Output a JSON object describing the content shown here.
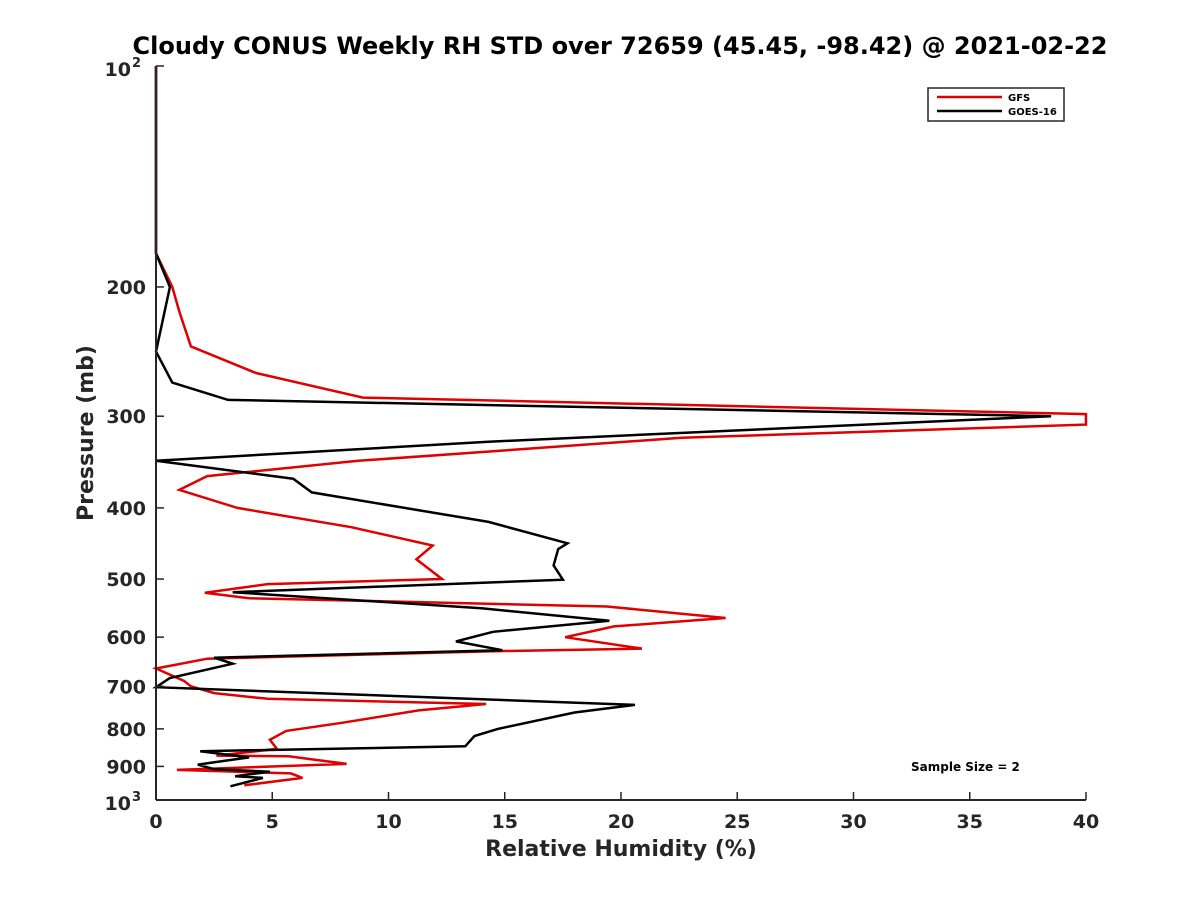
{
  "chart_data": {
    "type": "line",
    "title": "Cloudy CONUS Weekly RH STD over 72659 (45.45, -98.42) @ 2021-02-22",
    "xlabel": "Relative Humidity (%)",
    "ylabel": "Pressure (mb)",
    "xlim": [
      0,
      40
    ],
    "ylim": [
      100,
      1000
    ],
    "y_scale": "log",
    "y_reversed": true,
    "x_ticks": [
      "0",
      "5",
      "10",
      "15",
      "20",
      "25",
      "30",
      "35",
      "40"
    ],
    "y_ticks": [
      {
        "value": 100,
        "base": "10",
        "exp": "2"
      },
      {
        "value": 200,
        "label": "200"
      },
      {
        "value": 300,
        "label": "300"
      },
      {
        "value": 400,
        "label": "400"
      },
      {
        "value": 500,
        "label": "500"
      },
      {
        "value": 600,
        "label": "600"
      },
      {
        "value": 700,
        "label": "700"
      },
      {
        "value": 800,
        "label": "800"
      },
      {
        "value": 900,
        "label": "900"
      },
      {
        "value": 1000,
        "base": "10",
        "exp": "3"
      }
    ],
    "legend_position": "top-right",
    "grid": false,
    "annotation": "Sample Size = 2",
    "series": [
      {
        "name": "GFS",
        "color": "#e00000",
        "points": [
          [
            0,
            100
          ],
          [
            0,
            180
          ],
          [
            0.7,
            200
          ],
          [
            1.0,
            216
          ],
          [
            1.5,
            241
          ],
          [
            4.3,
            262
          ],
          [
            8.9,
            283
          ],
          [
            40,
            298
          ],
          [
            40,
            308
          ],
          [
            22.6,
            321
          ],
          [
            8.7,
            345
          ],
          [
            2.2,
            362
          ],
          [
            1.0,
            378
          ],
          [
            3.5,
            400
          ],
          [
            8.4,
            425
          ],
          [
            11.9,
            450
          ],
          [
            11.2,
            470
          ],
          [
            12.3,
            500
          ],
          [
            4.8,
            508
          ],
          [
            2.1,
            522
          ],
          [
            4.0,
            531
          ],
          [
            19.4,
            545
          ],
          [
            24.5,
            565
          ],
          [
            19.7,
            580
          ],
          [
            17.6,
            600
          ],
          [
            20.9,
            622
          ],
          [
            14.5,
            627
          ],
          [
            2.2,
            642
          ],
          [
            0,
            662
          ],
          [
            1.2,
            688
          ],
          [
            1.5,
            700
          ],
          [
            2.5,
            715
          ],
          [
            4.8,
            728
          ],
          [
            14.2,
            740
          ],
          [
            11.3,
            755
          ],
          [
            8.0,
            785
          ],
          [
            5.6,
            805
          ],
          [
            4.9,
            828
          ],
          [
            5.2,
            852
          ],
          [
            2.6,
            870
          ],
          [
            5.7,
            872
          ],
          [
            8.2,
            893
          ],
          [
            0.9,
            910
          ],
          [
            5.8,
            920
          ],
          [
            6.3,
            933
          ],
          [
            3.8,
            955
          ]
        ]
      },
      {
        "name": "GOES-16",
        "color": "#000000",
        "points": [
          [
            0,
            100
          ],
          [
            0,
            180
          ],
          [
            0.6,
            200
          ],
          [
            0,
            245
          ],
          [
            0.7,
            270
          ],
          [
            3.1,
            285
          ],
          [
            38.5,
            300
          ],
          [
            14.3,
            325
          ],
          [
            0,
            345
          ],
          [
            5.9,
            365
          ],
          [
            6.7,
            381
          ],
          [
            14.3,
            418
          ],
          [
            17.7,
            447
          ],
          [
            17.3,
            455
          ],
          [
            17.1,
            479
          ],
          [
            17.5,
            501
          ],
          [
            3.3,
            521
          ],
          [
            14.0,
            548
          ],
          [
            19.5,
            570
          ],
          [
            14.5,
            590
          ],
          [
            12.9,
            608
          ],
          [
            14.9,
            625
          ],
          [
            2.5,
            640
          ],
          [
            3.3,
            652
          ],
          [
            0.6,
            682
          ],
          [
            0,
            702
          ],
          [
            20.6,
            742
          ],
          [
            18.0,
            760
          ],
          [
            14.7,
            800
          ],
          [
            13.7,
            818
          ],
          [
            13.3,
            845
          ],
          [
            1.9,
            858
          ],
          [
            4.0,
            875
          ],
          [
            1.8,
            895
          ],
          [
            2.5,
            908
          ],
          [
            4.9,
            915
          ],
          [
            3.4,
            928
          ],
          [
            4.6,
            933
          ],
          [
            3.2,
            958
          ]
        ]
      }
    ]
  }
}
